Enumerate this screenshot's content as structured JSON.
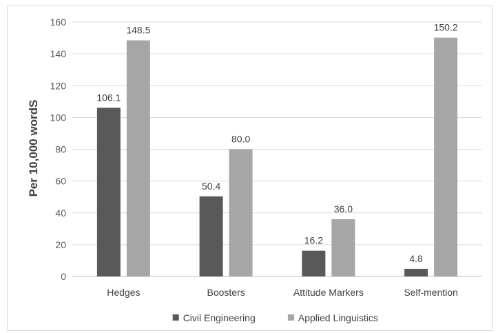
{
  "chart_data": {
    "type": "bar",
    "title": "",
    "xlabel": "",
    "ylabel": "Per 10,000 wordS",
    "ylim": [
      0,
      160
    ],
    "ytick_step": 20,
    "grid": true,
    "legend_position": "bottom",
    "categories": [
      "Hedges",
      "Boosters",
      "Attitude Markers",
      "Self-mention"
    ],
    "series": [
      {
        "name": "Civil Engineering",
        "color": "#595959",
        "values": [
          106.1,
          50.4,
          16.2,
          4.8
        ],
        "labels": [
          "106.1",
          "50.4",
          "16.2",
          "4.8"
        ]
      },
      {
        "name": "Applied Linguistics",
        "color": "#a6a6a6",
        "values": [
          148.5,
          80.0,
          36.0,
          150.2
        ],
        "labels": [
          "148.5",
          "80.0",
          "36.0",
          "150.2"
        ]
      }
    ]
  }
}
